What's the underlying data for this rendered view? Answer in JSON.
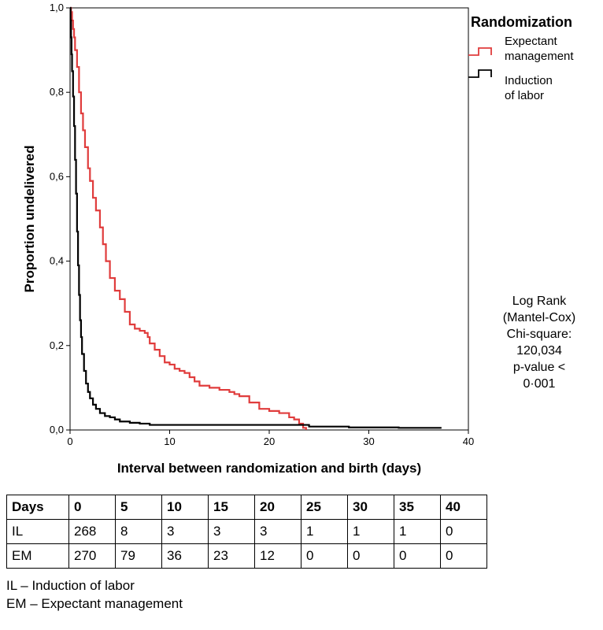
{
  "chart_data": {
    "type": "line",
    "title": "",
    "xlabel": "Interval between randomization and birth (days)",
    "ylabel": "Proportion undelivered",
    "xlim": [
      0,
      40
    ],
    "ylim": [
      0,
      1
    ],
    "x_ticks": [
      0,
      10,
      20,
      30,
      40
    ],
    "x_tick_labels": [
      "0",
      "10",
      "20",
      "30",
      "40"
    ],
    "y_ticks": [
      0,
      0.2,
      0.4,
      0.6,
      0.8,
      1.0
    ],
    "y_tick_labels": [
      "0,0",
      "0,2",
      "0,4",
      "0,6",
      "0,8",
      "1,0"
    ],
    "grid": false,
    "legend": {
      "title": "Randomization",
      "placement": "top-right, outside plot",
      "entries": [
        {
          "lines": [
            "Expectant",
            "management"
          ],
          "color": "#e03c3c"
        },
        {
          "lines": [
            "Induction",
            "of labor"
          ],
          "color": "#000000"
        }
      ]
    },
    "annotation": [
      "Log Rank",
      "(Mantel-Cox)",
      "Chi-square:",
      "120,034",
      "p-value <",
      "0·001"
    ],
    "series": [
      {
        "name": "Expectant management",
        "color": "#e03c3c",
        "step": true,
        "x": [
          0,
          0.1,
          0.2,
          0.3,
          0.4,
          0.5,
          0.7,
          0.9,
          1.1,
          1.3,
          1.5,
          1.8,
          2.0,
          2.3,
          2.6,
          3.0,
          3.3,
          3.6,
          4.0,
          4.5,
          5.0,
          5.5,
          6.0,
          6.5,
          7.0,
          7.5,
          7.8,
          8.0,
          8.5,
          9.0,
          9.5,
          10.0,
          10.5,
          11.0,
          11.5,
          12.0,
          12.5,
          13.0,
          14.0,
          15.0,
          16.0,
          16.5,
          17.0,
          18.0,
          19.0,
          20.0,
          21.0,
          22.0,
          22.5,
          23.0,
          23.4,
          23.7
        ],
        "y": [
          1.0,
          0.99,
          0.97,
          0.95,
          0.93,
          0.9,
          0.86,
          0.8,
          0.75,
          0.71,
          0.67,
          0.62,
          0.59,
          0.55,
          0.52,
          0.48,
          0.44,
          0.4,
          0.36,
          0.33,
          0.31,
          0.28,
          0.25,
          0.24,
          0.235,
          0.23,
          0.22,
          0.205,
          0.19,
          0.175,
          0.16,
          0.155,
          0.145,
          0.14,
          0.135,
          0.125,
          0.115,
          0.105,
          0.1,
          0.095,
          0.09,
          0.085,
          0.08,
          0.065,
          0.05,
          0.045,
          0.04,
          0.03,
          0.025,
          0.015,
          0.005,
          0.0
        ]
      },
      {
        "name": "Induction of labor",
        "color": "#000000",
        "step": true,
        "x": [
          0,
          0.05,
          0.1,
          0.15,
          0.2,
          0.3,
          0.4,
          0.5,
          0.6,
          0.7,
          0.8,
          0.9,
          1.0,
          1.1,
          1.2,
          1.4,
          1.6,
          1.8,
          2.0,
          2.3,
          2.6,
          3.0,
          3.5,
          4.0,
          4.5,
          5.0,
          6.0,
          7.0,
          8.0,
          10.0,
          12.0,
          14.0,
          17.0,
          20.0,
          23.0,
          24.0,
          28.0,
          33.0,
          37.3
        ],
        "y": [
          1.0,
          0.97,
          0.93,
          0.89,
          0.85,
          0.79,
          0.72,
          0.64,
          0.56,
          0.47,
          0.39,
          0.32,
          0.26,
          0.22,
          0.18,
          0.14,
          0.11,
          0.09,
          0.075,
          0.06,
          0.05,
          0.04,
          0.033,
          0.03,
          0.025,
          0.02,
          0.017,
          0.015,
          0.012,
          0.012,
          0.012,
          0.012,
          0.012,
          0.012,
          0.012,
          0.008,
          0.006,
          0.005,
          0.005
        ]
      }
    ]
  },
  "risk_table": {
    "headers": [
      "Days",
      "0",
      "5",
      "10",
      "15",
      "20",
      "25",
      "30",
      "35",
      "40"
    ],
    "rows": [
      [
        "IL",
        "268",
        "8",
        "3",
        "3",
        "3",
        "1",
        "1",
        "1",
        "0"
      ],
      [
        "EM",
        "270",
        "79",
        "36",
        "23",
        "12",
        "0",
        "0",
        "0",
        "0"
      ]
    ]
  },
  "footnotes": [
    "IL – Induction of labor",
    "EM – Expectant management"
  ]
}
